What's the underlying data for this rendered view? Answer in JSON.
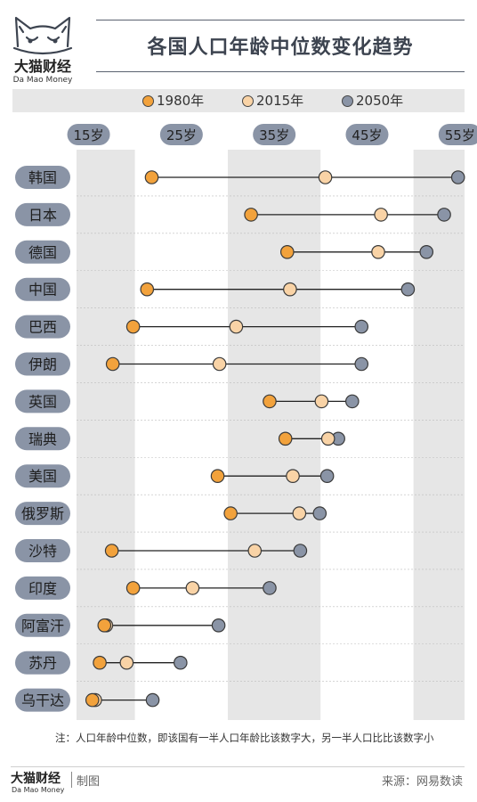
{
  "brand": {
    "name_cn": "大猫财经",
    "name_en": "Da Mao Money"
  },
  "header": {
    "title": "各国人口年龄中位数变化趋势"
  },
  "colors": {
    "1980": "#f2a23c",
    "2015": "#f9d3a6",
    "2050": "#8a94a6",
    "country_pill": "#8a94a6",
    "tick_pill": "#8a94a6",
    "band_shade": "#e6e6e6"
  },
  "chart_data": {
    "type": "dumbbell",
    "title": "各国人口年龄中位数变化趋势",
    "series": [
      {
        "name": "1980年",
        "key": "1980"
      },
      {
        "name": "2015年",
        "key": "2015"
      },
      {
        "name": "2050年",
        "key": "2050"
      }
    ],
    "x_ticks": [
      "15岁",
      "25岁",
      "35岁",
      "45岁",
      "55岁"
    ],
    "x_tick_values": [
      15,
      25,
      35,
      45,
      55
    ],
    "xlim": [
      13.7,
      55.5
    ],
    "legend_position": "top",
    "countries": [
      {
        "name": "韩国",
        "1980": 21.8,
        "2015": 40.5,
        "2050": 54.8
      },
      {
        "name": "日本",
        "1980": 32.5,
        "2015": 46.5,
        "2050": 53.3
      },
      {
        "name": "德国",
        "1980": 36.4,
        "2015": 46.2,
        "2050": 51.4
      },
      {
        "name": "中国",
        "1980": 21.3,
        "2015": 36.7,
        "2050": 49.4
      },
      {
        "name": "巴西",
        "1980": 19.8,
        "2015": 30.9,
        "2050": 44.4
      },
      {
        "name": "伊朗",
        "1980": 17.6,
        "2015": 29.1,
        "2050": 44.4
      },
      {
        "name": "英国",
        "1980": 34.5,
        "2015": 40.1,
        "2050": 43.4
      },
      {
        "name": "瑞典",
        "1980": 36.2,
        "2015": 40.8,
        "2050": 41.9
      },
      {
        "name": "美国",
        "1980": 28.9,
        "2015": 37.0,
        "2050": 40.7
      },
      {
        "name": "俄罗斯",
        "1980": 30.3,
        "2015": 37.7,
        "2050": 39.9
      },
      {
        "name": "沙特",
        "1980": 17.5,
        "2015": 32.9,
        "2050": 37.8
      },
      {
        "name": "印度",
        "1980": 19.8,
        "2015": 26.2,
        "2050": 34.5
      },
      {
        "name": "阿富汗",
        "1980": 16.7,
        "2015": 16.9,
        "2050": 29.0
      },
      {
        "name": "苏丹",
        "1980": 16.2,
        "2015": 19.1,
        "2050": 24.9
      },
      {
        "name": "乌干达",
        "1980": 15.4,
        "2015": 15.7,
        "2050": 21.9
      }
    ]
  },
  "note": "注：人口年龄中位数，即该国有一半人口年龄比该数字大，另一半人口比比该数字小",
  "footer": {
    "credit": "制图",
    "source": "来源：网易数读"
  }
}
